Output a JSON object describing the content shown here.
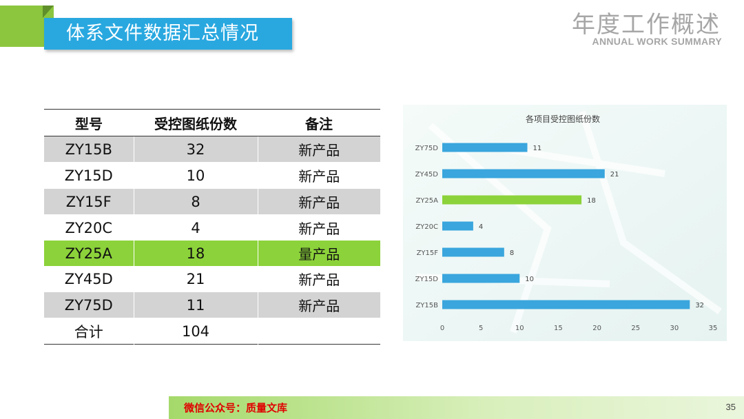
{
  "header": {
    "section_title": "体系文件数据汇总情况",
    "brand_title": "年度工作概述",
    "brand_subtitle": "ANNUAL WORK SUMMARY"
  },
  "table": {
    "headers": [
      "型号",
      "受控图纸份数",
      "备注"
    ],
    "rows": [
      {
        "model": "ZY15B",
        "count": "32",
        "note": "新产品",
        "style": "shaded"
      },
      {
        "model": "ZY15D",
        "count": "10",
        "note": "新产品",
        "style": "plain"
      },
      {
        "model": "ZY15F",
        "count": "8",
        "note": "新产品",
        "style": "shaded"
      },
      {
        "model": "ZY20C",
        "count": "4",
        "note": "新产品",
        "style": "plain"
      },
      {
        "model": "ZY25A",
        "count": "18",
        "note": "量产品",
        "style": "hl"
      },
      {
        "model": "ZY45D",
        "count": "21",
        "note": "新产品",
        "style": "plain"
      },
      {
        "model": "ZY75D",
        "count": "11",
        "note": "新产品",
        "style": "shaded"
      },
      {
        "model": "合计",
        "count": "104",
        "note": "",
        "style": "plain"
      }
    ]
  },
  "chart_data": {
    "type": "bar",
    "orientation": "horizontal",
    "title": "各项目受控图纸份数",
    "categories": [
      "ZY75D",
      "ZY45D",
      "ZY25A",
      "ZY20C",
      "ZY15F",
      "ZY15D",
      "ZY15B"
    ],
    "values": [
      11,
      21,
      18,
      4,
      8,
      10,
      32
    ],
    "xlim": [
      0,
      35
    ],
    "xticks": [
      0,
      5,
      10,
      15,
      20,
      25,
      30,
      35
    ],
    "bar_color": "#3aa6dd",
    "highlight_category": "ZY25A",
    "highlight_color": "#8cd23a",
    "grid": false,
    "legend": "none"
  },
  "footer": {
    "wechat": "微信公众号：质量文库",
    "page_number": "35"
  },
  "colors": {
    "banner_blue": "#29a8e0",
    "accent_green": "#8cc63f",
    "footer_red": "#e00000"
  }
}
